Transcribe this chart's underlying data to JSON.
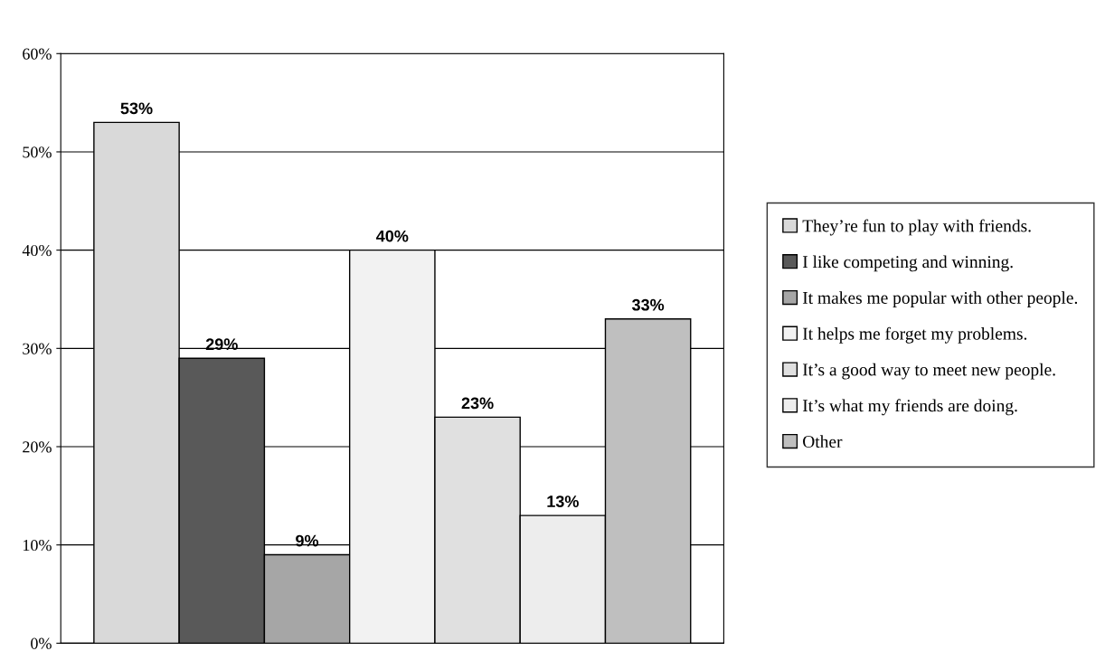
{
  "chart_data": {
    "type": "bar",
    "categories": [
      null
    ],
    "series": [
      {
        "name": "They’re fun to play with friends.",
        "color": "#d9d9d9",
        "values": [
          53
        ],
        "value_labels": [
          "53%"
        ]
      },
      {
        "name": "I like competing and winning.",
        "color": "#595959",
        "values": [
          29
        ],
        "value_labels": [
          "29%"
        ]
      },
      {
        "name": "It makes me popular with other people.",
        "color": "#a6a6a6",
        "values": [
          9
        ],
        "value_labels": [
          "9%"
        ]
      },
      {
        "name": "It helps me forget my problems.",
        "color": "#f2f2f2",
        "values": [
          40
        ],
        "value_labels": [
          "40%"
        ]
      },
      {
        "name": "It’s a good way to meet new people.",
        "color": "#e0e0e0",
        "values": [
          23
        ],
        "value_labels": [
          "23%"
        ]
      },
      {
        "name": "It’s what my friends are doing.",
        "color": "#ededed",
        "values": [
          13
        ],
        "value_labels": [
          "13%"
        ]
      },
      {
        "name": "Other",
        "color": "#bfbfbf",
        "values": [
          33
        ],
        "value_labels": [
          "33%"
        ]
      }
    ],
    "ylim": [
      0,
      60
    ],
    "yticks": [
      {
        "value": 0,
        "label": "0%"
      },
      {
        "value": 10,
        "label": "10%"
      },
      {
        "value": 20,
        "label": "20%"
      },
      {
        "value": 30,
        "label": "30%"
      },
      {
        "value": 40,
        "label": "40%"
      },
      {
        "value": 50,
        "label": "50%"
      },
      {
        "value": 60,
        "label": "60%"
      }
    ],
    "grid": "y",
    "legend": "right"
  }
}
